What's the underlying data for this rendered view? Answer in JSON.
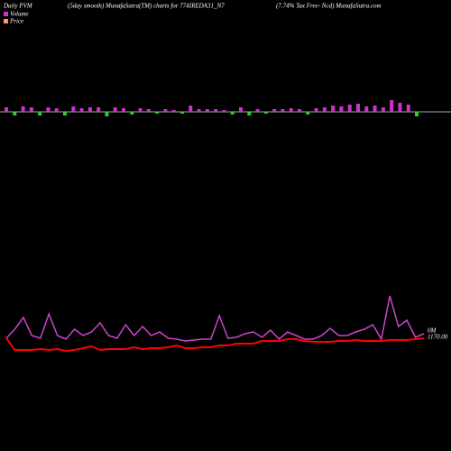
{
  "chart_data": {
    "type": "pvm",
    "title": "(5day smooth) MunafaSutra(TM) charts for 774IREDA31_N7",
    "left_title": "Daily PVM",
    "right_title": "(7.74% Tax Free- Ncd) MunafaSutra.com",
    "volume_label": "0M",
    "price_label": "1170.00",
    "bars": {
      "values": [
        5,
        -4,
        6,
        5,
        -4,
        5,
        4,
        -4,
        6,
        4,
        5,
        5,
        -5,
        5,
        4,
        -3,
        4,
        3,
        -2,
        3,
        2,
        -2,
        7,
        3,
        3,
        3,
        2,
        -3,
        5,
        -4,
        3,
        -2,
        3,
        3,
        4,
        3,
        -3,
        4,
        5,
        7,
        6,
        8,
        9,
        6,
        7,
        5,
        13,
        10,
        8,
        -5
      ],
      "up_color": "#cc33cc",
      "down_color": "#33cc33"
    },
    "barlim": [
      -10,
      20
    ],
    "ylim": [
      0,
      80
    ],
    "series": [
      {
        "name": "Volume",
        "color": "#cc44cc",
        "legend_color": "#cc33cc",
        "values": [
          25,
          35,
          48,
          28,
          25,
          52,
          28,
          24,
          35,
          28,
          32,
          42,
          28,
          25,
          40,
          28,
          38,
          28,
          32,
          25,
          24,
          22,
          23,
          24,
          24,
          50,
          25,
          26,
          30,
          32,
          26,
          34,
          24,
          32,
          28,
          24,
          24,
          28,
          36,
          28,
          28,
          32,
          35,
          40,
          24,
          72,
          38,
          45,
          26,
          30
        ]
      },
      {
        "name": "Price",
        "color": "#ff0000",
        "legend_color": "#ff9966",
        "values": [
          25,
          12,
          12,
          12,
          13,
          12,
          13,
          11,
          12,
          14,
          16,
          12,
          13,
          13,
          13,
          15,
          13,
          14,
          14,
          15,
          17,
          14,
          14,
          15,
          15,
          17,
          17,
          19,
          19,
          19,
          22,
          22,
          22,
          24,
          24,
          22,
          21,
          21,
          21,
          22,
          22,
          23,
          22,
          22,
          22,
          23,
          23,
          23,
          24,
          25
        ]
      }
    ]
  }
}
